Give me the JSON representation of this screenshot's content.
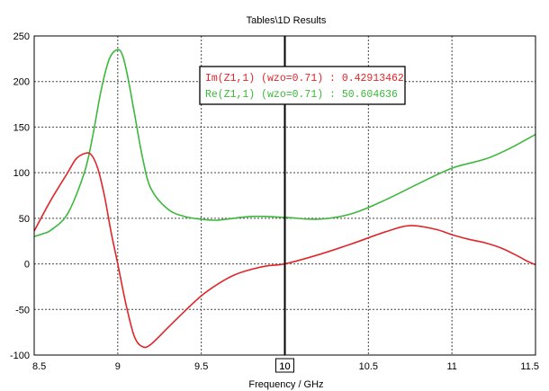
{
  "chart_data": {
    "type": "line",
    "title": "Tables\\1D Results",
    "xlabel": "Frequency / GHz",
    "ylabel": "",
    "xlim": [
      8.5,
      11.5
    ],
    "ylim": [
      -100,
      250
    ],
    "xticks": [
      8.5,
      9,
      9.5,
      10,
      10.5,
      11,
      11.5
    ],
    "xtick_labels": [
      "8.5",
      "9",
      "9.5",
      "10",
      "10.5",
      "11",
      "11.5"
    ],
    "yticks": [
      -100,
      -50,
      0,
      50,
      100,
      150,
      200,
      250
    ],
    "ytick_labels": [
      "-100",
      "-50",
      "0",
      "50",
      "100",
      "150",
      "200",
      "250"
    ],
    "grid": true,
    "legend_position": "top-center",
    "marker": {
      "x": 10,
      "label": "10"
    },
    "series": [
      {
        "name": "Im(Z1,1) (wzo=0.71)",
        "color": "#e0262b",
        "readout": "Im(Z1,1) (wzo=0.71) : 0.42913462",
        "x": [
          8.5,
          8.6,
          8.7,
          8.75,
          8.8,
          8.84,
          8.88,
          8.92,
          8.96,
          9.0,
          9.05,
          9.1,
          9.15,
          9.2,
          9.3,
          9.4,
          9.5,
          9.6,
          9.7,
          9.8,
          9.9,
          10.0,
          10.2,
          10.4,
          10.6,
          10.75,
          10.9,
          11.0,
          11.1,
          11.2,
          11.3,
          11.4,
          11.45,
          11.5
        ],
        "y": [
          36,
          70,
          100,
          115,
          121,
          120,
          105,
          75,
          35,
          0,
          -45,
          -80,
          -91,
          -88,
          -70,
          -52,
          -35,
          -22,
          -12,
          -6,
          -2,
          0,
          10,
          22,
          35,
          42,
          38,
          32,
          27,
          23,
          17,
          8,
          3,
          -1
        ]
      },
      {
        "name": "Re(Z1,1) (wzo=0.71)",
        "color": "#3cb83c",
        "readout": "Re(Z1,1) (wzo=0.71) : 50.604636",
        "x": [
          8.5,
          8.55,
          8.6,
          8.7,
          8.8,
          8.85,
          8.9,
          8.95,
          9.0,
          9.03,
          9.06,
          9.1,
          9.15,
          9.2,
          9.3,
          9.4,
          9.5,
          9.6,
          9.8,
          10.0,
          10.2,
          10.4,
          10.6,
          10.8,
          11.0,
          11.2,
          11.35,
          11.5
        ],
        "y": [
          30,
          33,
          37,
          55,
          100,
          140,
          190,
          225,
          235,
          228,
          205,
          165,
          115,
          82,
          60,
          52,
          49,
          48,
          52,
          51,
          49,
          55,
          70,
          88,
          105,
          115,
          127,
          142
        ]
      }
    ]
  }
}
